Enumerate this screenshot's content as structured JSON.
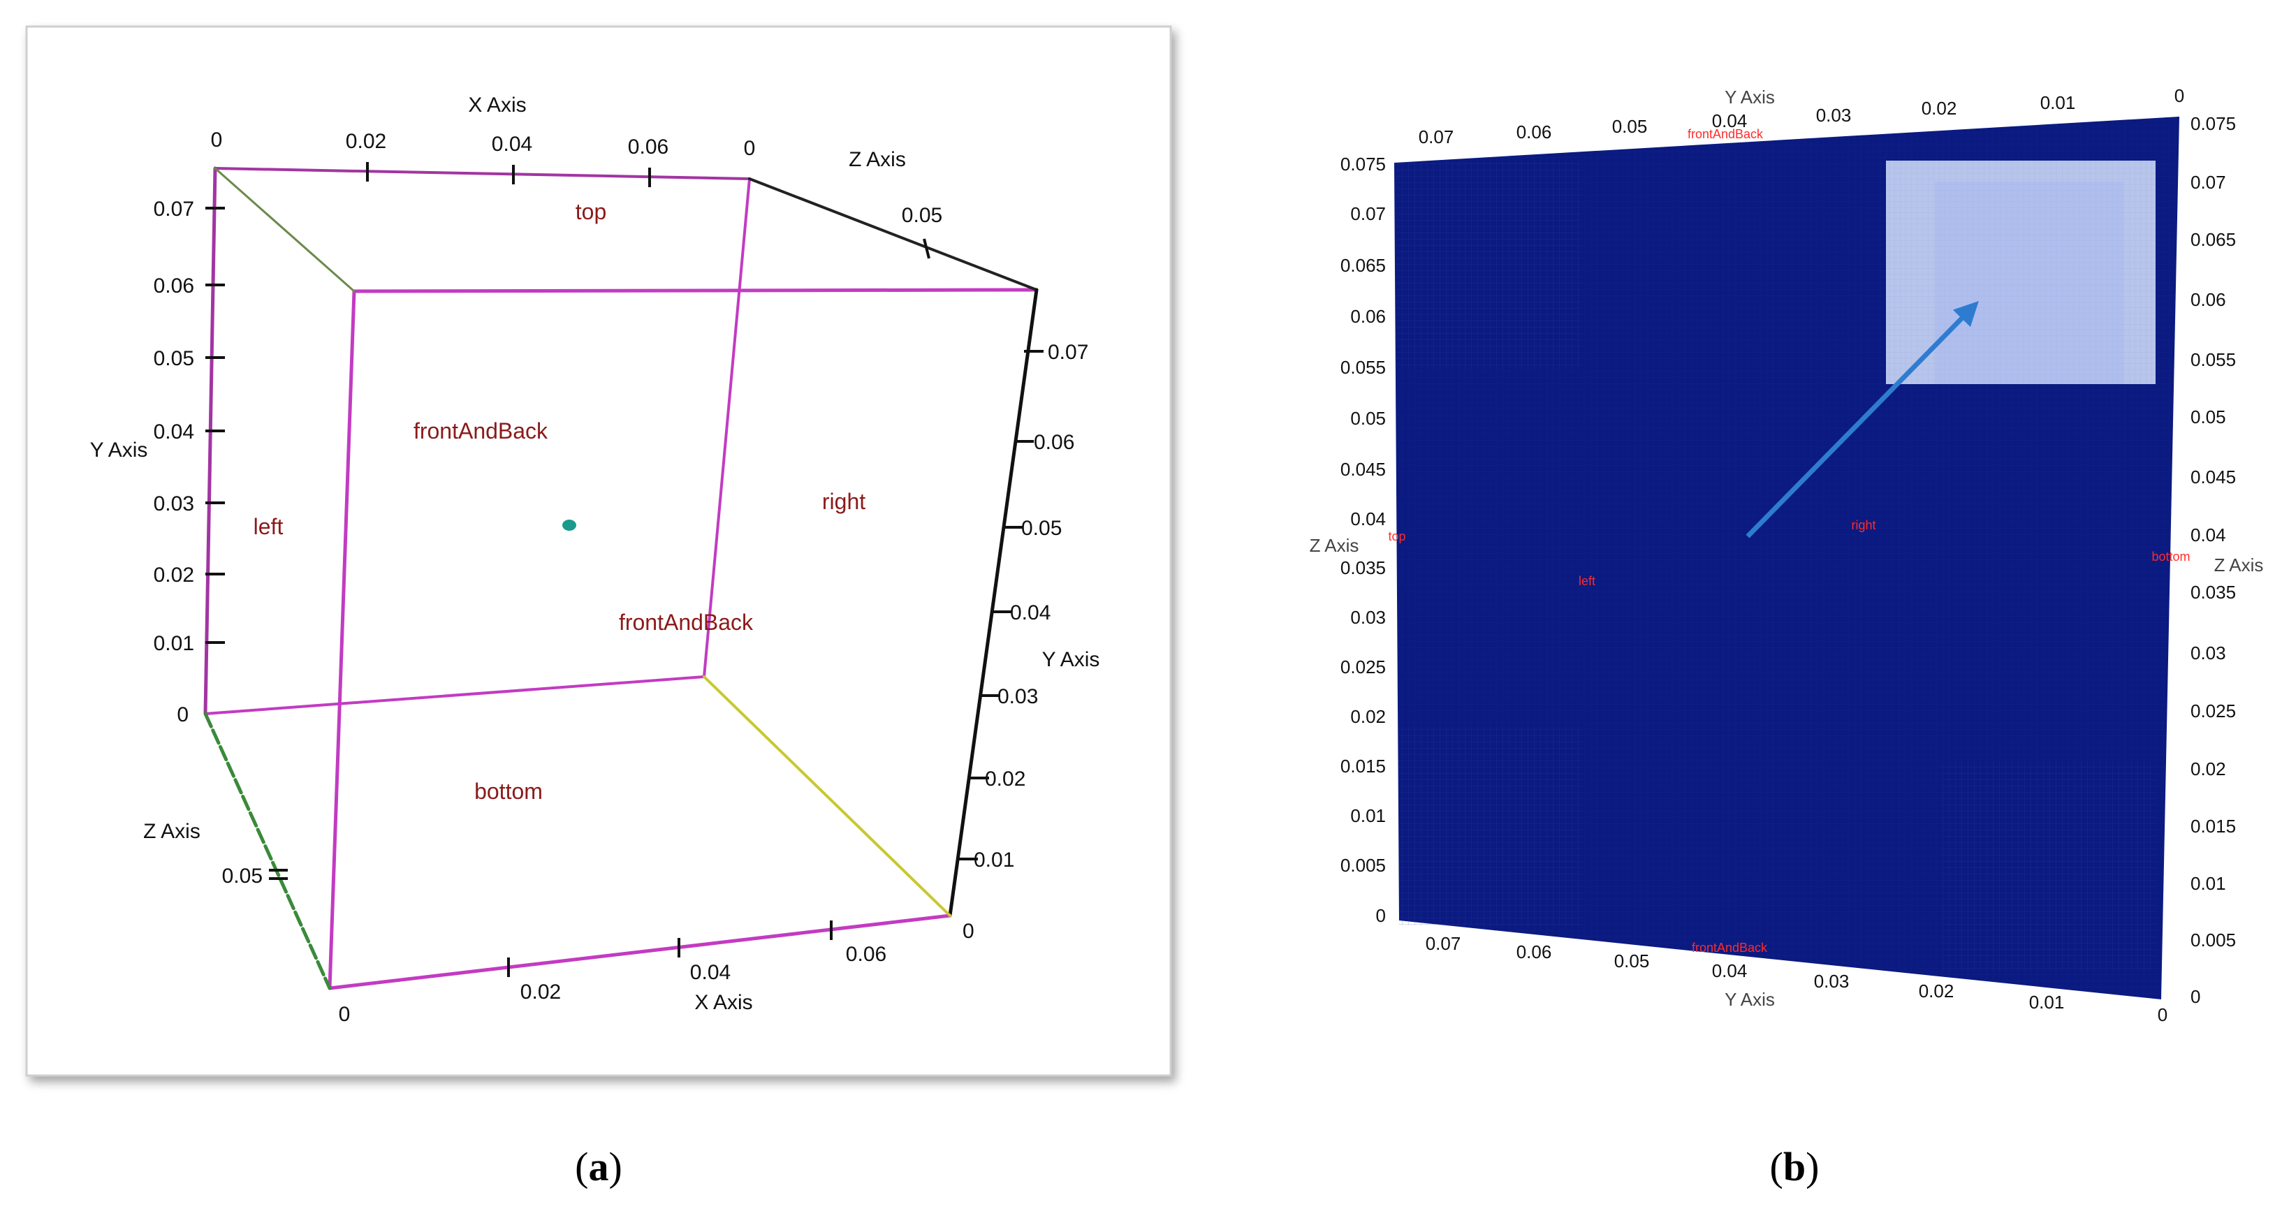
{
  "panel_a": {
    "x_axis_title": "X Axis",
    "y_axis_title": "Y Axis",
    "z_axis_title": "Z Axis",
    "top_x_ticks": [
      "0",
      "0.02",
      "0.04",
      "0.06",
      "0"
    ],
    "left_y_ticks": [
      "0.07",
      "0.06",
      "0.05",
      "0.04",
      "0.03",
      "0.02",
      "0.01",
      "0"
    ],
    "top_z_tick": "0.05",
    "left_z_tick": "0.05",
    "right_y_ticks": [
      "0.07",
      "0.06",
      "0.05",
      "0.04",
      "0.03",
      "0.02",
      "0.01",
      "0"
    ],
    "bottom_x_ticks": [
      "0",
      "0.02",
      "0.04",
      "0.06"
    ],
    "patches": {
      "top": "top",
      "front": "frontAndBack",
      "back": "frontAndBack",
      "left": "left",
      "right": "right",
      "bottom": "bottom"
    },
    "colors": {
      "edge": "#c23bc2",
      "tick_label": "#111111",
      "patch_label": "#8b1a1a",
      "probe_point": "#1a9a8a"
    }
  },
  "panel_b": {
    "top_axis_title": "Y Axis",
    "bottom_axis_title": "Y Axis",
    "left_axis_title": "Z Axis",
    "right_axis_title": "Z Axis",
    "top_ticks": [
      "0.07",
      "0.06",
      "0.05",
      "0.04",
      "0.03",
      "0.02",
      "0.01",
      "0"
    ],
    "bottom_ticks": [
      "0.07",
      "0.06",
      "0.05",
      "0.04",
      "0.03",
      "0.02",
      "0.01",
      "0"
    ],
    "left_ticks": [
      "0.075",
      "0.07",
      "0.065",
      "0.06",
      "0.055",
      "0.05",
      "0.045",
      "0.04",
      "0.035",
      "0.03",
      "0.025",
      "0.02",
      "0.015",
      "0.01",
      "0.005",
      "0"
    ],
    "right_ticks": [
      "0.075",
      "0.07",
      "0.065",
      "0.06",
      "0.055",
      "0.05",
      "0.045",
      "0.04",
      "0.035",
      "0.03",
      "0.025",
      "0.02",
      "0.015",
      "0.01",
      "0.005",
      "0"
    ],
    "patches": {
      "top_front": "frontAndBack",
      "bottom_front": "frontAndBack",
      "top": "top",
      "bottom": "bottom",
      "left": "left",
      "right": "right"
    },
    "colors": {
      "mesh": "#0a1a80",
      "highlight": "#c8d4f4",
      "arrow": "#2e7cd0",
      "patch_label": "#ff2b2b"
    }
  },
  "captions": {
    "a_open": "(",
    "a_letter": "a",
    "a_close": ")",
    "b_open": "(",
    "b_letter": "b",
    "b_close": ")"
  }
}
